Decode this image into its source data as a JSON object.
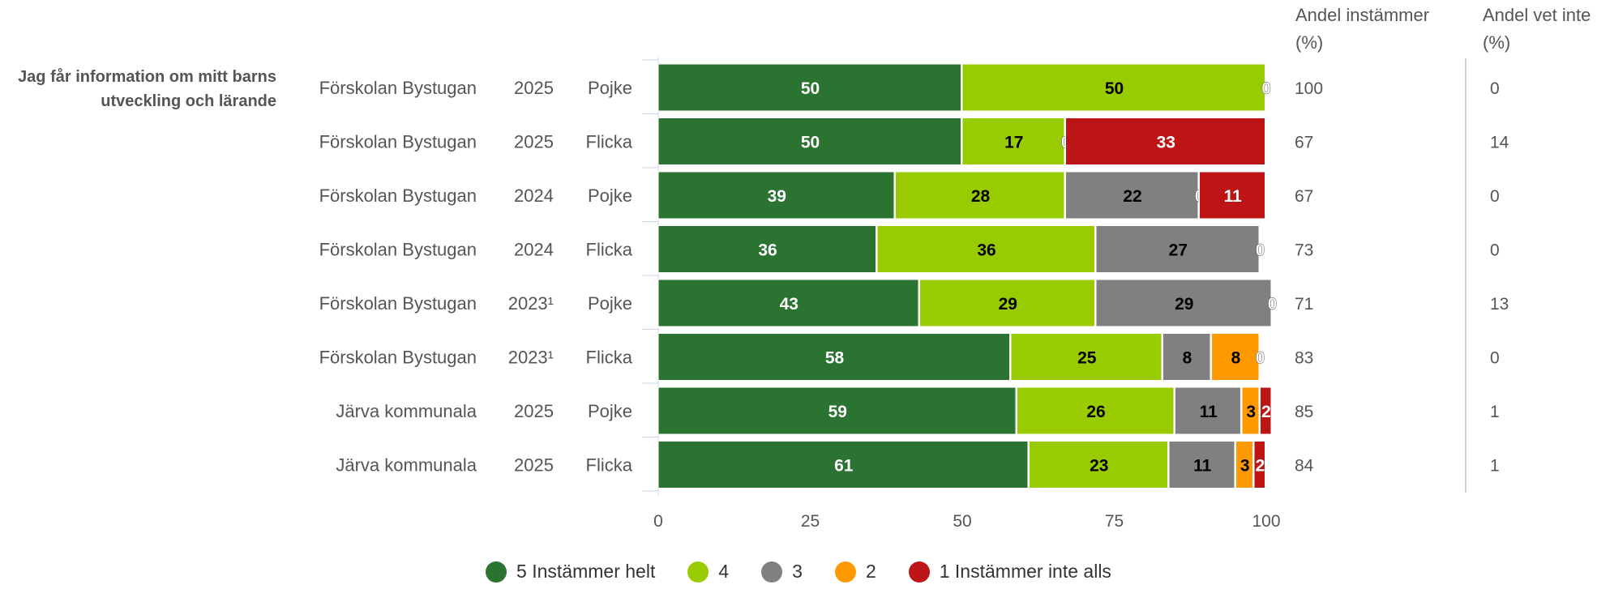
{
  "question": "Jag får information om mitt barns utveckling och lärande",
  "column_headers": {
    "agree": "Andel instämmer (%)",
    "dontknow": "Andel vet inte (%)"
  },
  "colors": {
    "5": "#2a7330",
    "4": "#99cc00",
    "3": "#808080",
    "2": "#ff9900",
    "1": "#bd1515"
  },
  "chart_data": {
    "type": "bar",
    "orientation": "horizontal",
    "stacked": true,
    "xlim": [
      0,
      100
    ],
    "xticks": [
      0,
      25,
      50,
      75,
      100
    ],
    "grid": false,
    "legend_position": "bottom",
    "series": [
      {
        "name": "5 Instämmer helt",
        "key": "5"
      },
      {
        "name": "4",
        "key": "4"
      },
      {
        "name": "3",
        "key": "3"
      },
      {
        "name": "2",
        "key": "2"
      },
      {
        "name": "1 Instämmer inte alls",
        "key": "1"
      }
    ],
    "rows": [
      {
        "unit": "Förskolan Bystugan",
        "year": "2025",
        "gender": "Pojke",
        "segments": [
          {
            "series": "5",
            "value": 50,
            "label": "50"
          },
          {
            "series": "4",
            "value": 50,
            "label": "50"
          },
          {
            "series": "3",
            "value": 0,
            "label": "0"
          },
          {
            "series": "2",
            "value": 0,
            "label": ""
          },
          {
            "series": "1",
            "value": 0,
            "label": ""
          }
        ],
        "agree": "100",
        "dontknow": "0"
      },
      {
        "unit": "Förskolan Bystugan",
        "year": "2025",
        "gender": "Flicka",
        "segments": [
          {
            "series": "5",
            "value": 50,
            "label": "50"
          },
          {
            "series": "4",
            "value": 17,
            "label": "17"
          },
          {
            "series": "3",
            "value": 0,
            "label": "0"
          },
          {
            "series": "2",
            "value": 0,
            "label": ""
          },
          {
            "series": "1",
            "value": 33,
            "label": "33"
          }
        ],
        "agree": "67",
        "dontknow": "14"
      },
      {
        "unit": "Förskolan Bystugan",
        "year": "2024",
        "gender": "Pojke",
        "segments": [
          {
            "series": "5",
            "value": 39,
            "label": "39"
          },
          {
            "series": "4",
            "value": 28,
            "label": "28"
          },
          {
            "series": "3",
            "value": 22,
            "label": "22"
          },
          {
            "series": "2",
            "value": 0,
            "label": "0"
          },
          {
            "series": "1",
            "value": 11,
            "label": "11"
          }
        ],
        "agree": "67",
        "dontknow": "0"
      },
      {
        "unit": "Förskolan Bystugan",
        "year": "2024",
        "gender": "Flicka",
        "segments": [
          {
            "series": "5",
            "value": 36,
            "label": "36"
          },
          {
            "series": "4",
            "value": 36,
            "label": "36"
          },
          {
            "series": "3",
            "value": 27,
            "label": "27"
          },
          {
            "series": "2",
            "value": 0,
            "label": "0"
          },
          {
            "series": "1",
            "value": 0,
            "label": ""
          }
        ],
        "agree": "73",
        "dontknow": "0"
      },
      {
        "unit": "Förskolan Bystugan",
        "year": "2023¹",
        "gender": "Pojke",
        "segments": [
          {
            "series": "5",
            "value": 43,
            "label": "43"
          },
          {
            "series": "4",
            "value": 29,
            "label": "29"
          },
          {
            "series": "3",
            "value": 29,
            "label": "29"
          },
          {
            "series": "2",
            "value": 0,
            "label": "0"
          },
          {
            "series": "1",
            "value": 0,
            "label": ""
          }
        ],
        "agree": "71",
        "dontknow": "13"
      },
      {
        "unit": "Förskolan Bystugan",
        "year": "2023¹",
        "gender": "Flicka",
        "segments": [
          {
            "series": "5",
            "value": 58,
            "label": "58"
          },
          {
            "series": "4",
            "value": 25,
            "label": "25"
          },
          {
            "series": "3",
            "value": 8,
            "label": "8"
          },
          {
            "series": "2",
            "value": 8,
            "label": "8"
          },
          {
            "series": "1",
            "value": 0,
            "label": "0"
          }
        ],
        "agree": "83",
        "dontknow": "0"
      },
      {
        "unit": "Järva kommunala",
        "year": "2025",
        "gender": "Pojke",
        "segments": [
          {
            "series": "5",
            "value": 59,
            "label": "59"
          },
          {
            "series": "4",
            "value": 26,
            "label": "26"
          },
          {
            "series": "3",
            "value": 11,
            "label": "11"
          },
          {
            "series": "2",
            "value": 3,
            "label": "3"
          },
          {
            "series": "1",
            "value": 2,
            "label": "2"
          }
        ],
        "agree": "85",
        "dontknow": "1"
      },
      {
        "unit": "Järva kommunala",
        "year": "2025",
        "gender": "Flicka",
        "segments": [
          {
            "series": "5",
            "value": 61,
            "label": "61"
          },
          {
            "series": "4",
            "value": 23,
            "label": "23"
          },
          {
            "series": "3",
            "value": 11,
            "label": "11"
          },
          {
            "series": "2",
            "value": 3,
            "label": "3"
          },
          {
            "series": "1",
            "value": 2,
            "label": "2"
          }
        ],
        "agree": "84",
        "dontknow": "1"
      }
    ]
  }
}
